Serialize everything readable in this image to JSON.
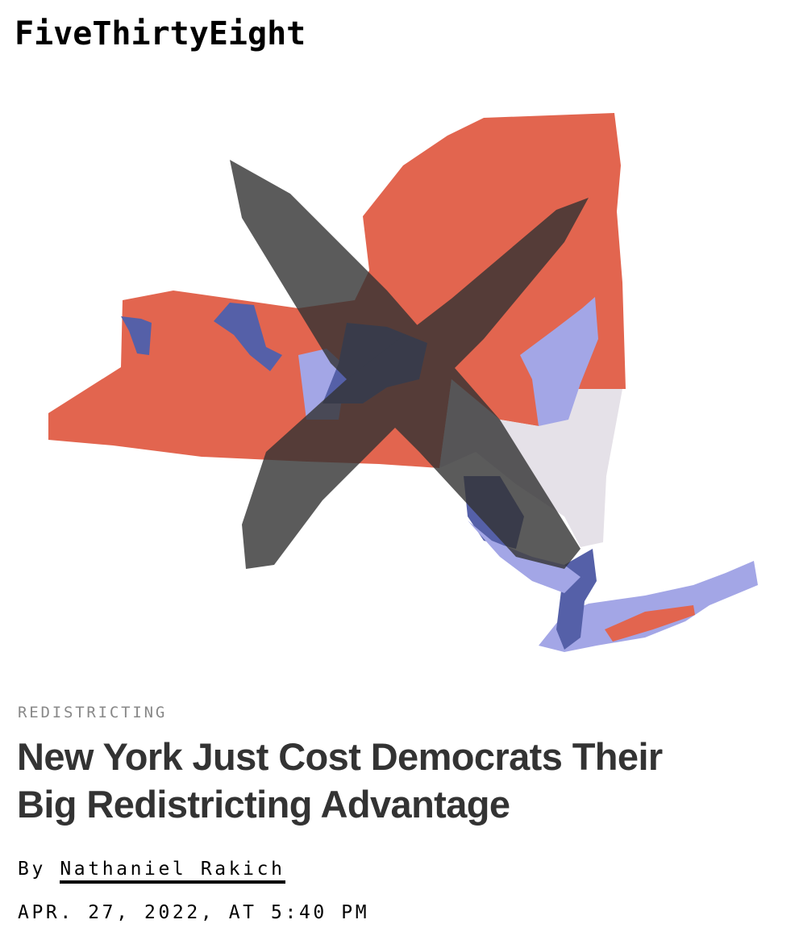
{
  "site": {
    "logo": "FiveThirtyEight"
  },
  "hero": {
    "icon": "new-york-district-map-crossed-out",
    "colors": {
      "republican": "#e2654f",
      "democrat_dark": "#5560a8",
      "democrat_light": "#a3a6e6",
      "neutral": "#e5e1e8",
      "strike": "#3d3d3d"
    }
  },
  "article": {
    "category": "REDISTRICTING",
    "headline_line1": "New York Just Cost Democrats Their",
    "headline_line2": "Big Redistricting Advantage",
    "byline_prefix": "By",
    "author": "Nathaniel Rakich",
    "date": "APR. 27, 2022, AT 5:40 PM"
  }
}
